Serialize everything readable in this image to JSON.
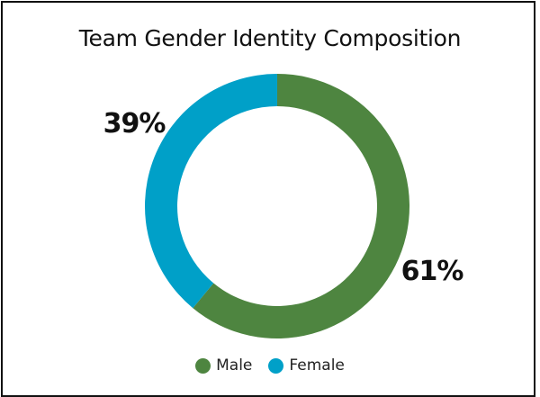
{
  "chart_data": {
    "type": "pie",
    "style": "donut",
    "title": "Team Gender Identity Composition",
    "categories": [
      "Male",
      "Female"
    ],
    "values": [
      61,
      39
    ],
    "value_labels": [
      "61%",
      "39%"
    ],
    "colors": [
      "#4e8540",
      "#00a0c8"
    ],
    "legend_position": "bottom"
  }
}
